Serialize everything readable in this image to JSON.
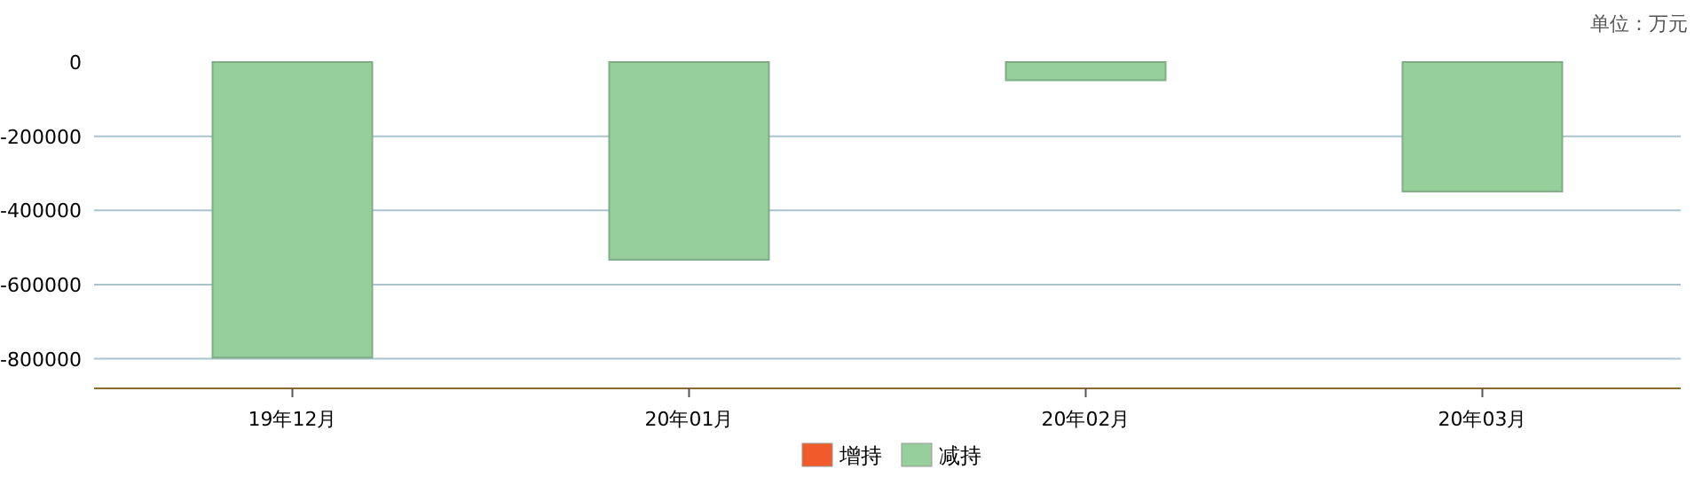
{
  "chart_data": {
    "type": "bar",
    "annotations": [
      "单位：万元"
    ],
    "categories": [
      "19年12月",
      "20年01月",
      "20年02月",
      "20年03月"
    ],
    "series": [
      {
        "name": "增持",
        "color": "#f15a2b",
        "values": [
          0,
          0,
          0,
          0
        ]
      },
      {
        "name": "减持",
        "color": "#96cf9c",
        "values": [
          -797000,
          -533000,
          -49000,
          -349000
        ]
      }
    ],
    "ylim": [
      -880000,
      0
    ],
    "yticks": [
      -800000,
      -600000,
      -400000,
      -200000,
      0
    ],
    "grid": "y",
    "legend": "bottom"
  }
}
